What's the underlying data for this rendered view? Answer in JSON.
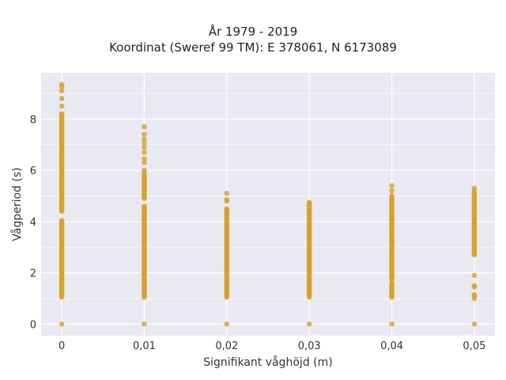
{
  "chart_data": {
    "type": "scatter",
    "title": [
      "År 1979 - 2019",
      "Koordinat (Sweref 99 TM): E 378061, N 6173089"
    ],
    "xlabel": "Signifikant våghöjd (m)",
    "ylabel": "Vågperiod (s)",
    "x_ticks": [
      "0",
      "0,01",
      "0,02",
      "0,03",
      "0,04",
      "0,05"
    ],
    "y_ticks": [
      "0",
      "2",
      "4",
      "6",
      "8"
    ],
    "xlim": [
      -0.0025,
      0.0525
    ],
    "ylim": [
      -0.45,
      9.8
    ],
    "grid": true,
    "marker_color": "#d4a22a",
    "plot_background": "#e9e9f1",
    "columns": [
      {
        "x": 0.0,
        "zeros": true,
        "ranges": [
          [
            1.05,
            4.05
          ],
          [
            4.4,
            8.2
          ]
        ],
        "points": [
          8.5,
          8.8,
          9.1,
          9.25,
          9.35
        ]
      },
      {
        "x": 0.01,
        "zeros": true,
        "ranges": [
          [
            1.05,
            4.6
          ],
          [
            4.9,
            5.9
          ]
        ],
        "points": [
          6.0,
          6.3,
          6.45,
          6.7,
          6.9,
          7.05,
          7.2,
          7.4,
          7.7
        ]
      },
      {
        "x": 0.02,
        "zeros": true,
        "ranges": [
          [
            1.05,
            4.5
          ]
        ],
        "points": [
          4.8,
          4.85,
          5.1
        ]
      },
      {
        "x": 0.03,
        "zeros": true,
        "ranges": [
          [
            1.05,
            4.7
          ]
        ],
        "points": [
          4.75
        ]
      },
      {
        "x": 0.04,
        "zeros": true,
        "ranges": [
          [
            1.05,
            1.6
          ],
          [
            1.75,
            5.0
          ]
        ],
        "points": [
          5.2,
          5.4
        ]
      },
      {
        "x": 0.05,
        "zeros": true,
        "ranges": [
          [
            2.7,
            5.1
          ]
        ],
        "points": [
          1.0,
          1.1,
          1.15,
          1.45,
          1.5,
          1.9,
          5.2,
          5.3
        ]
      }
    ]
  }
}
